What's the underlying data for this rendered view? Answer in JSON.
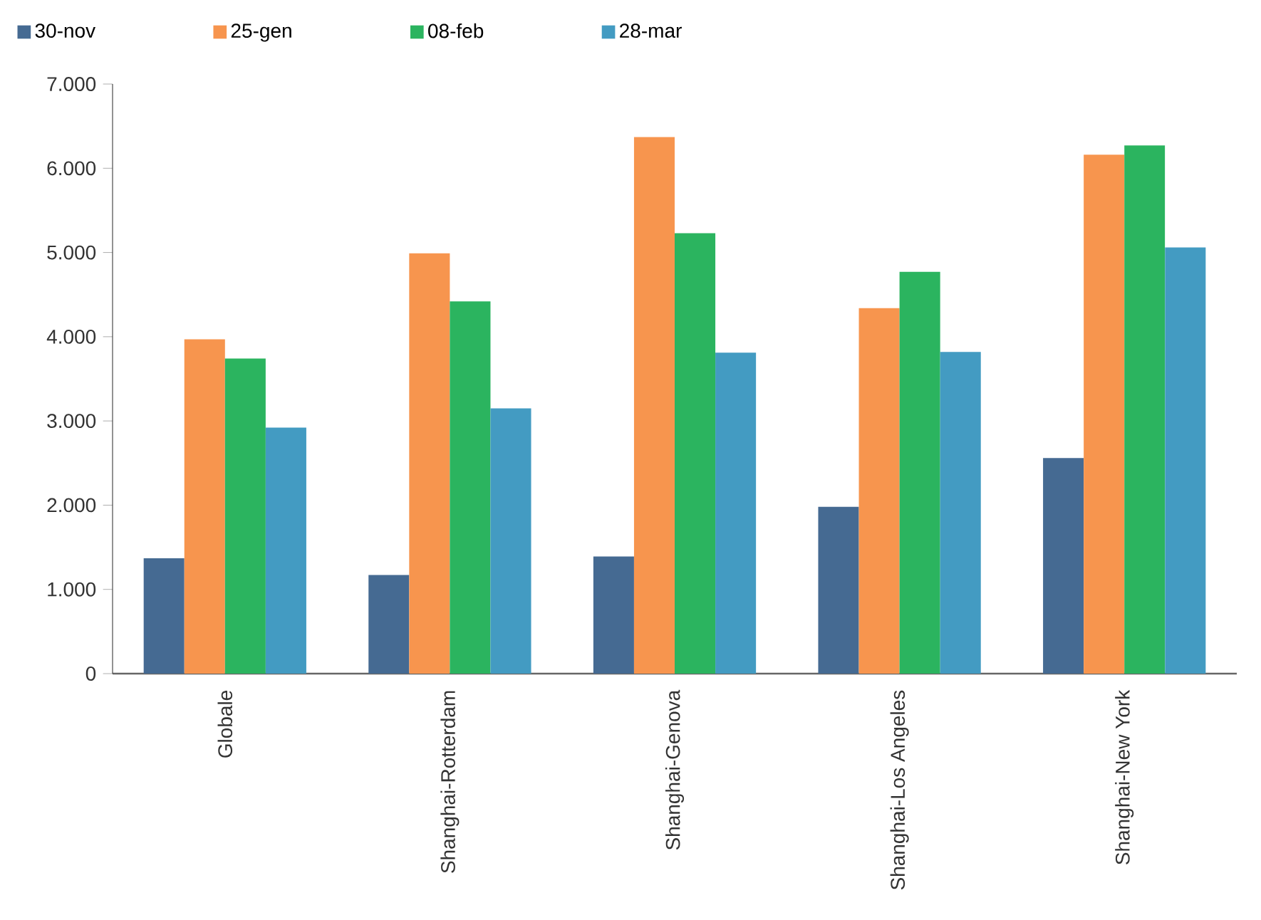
{
  "chart_data": {
    "type": "bar",
    "categories": [
      "Globale",
      "Shanghai-Rotterdam",
      "Shanghai-Genova",
      "Shanghai-Los Angeles",
      "Shanghai-New York"
    ],
    "series": [
      {
        "name": "30-nov",
        "color": "#456a92",
        "values": [
          1370,
          1170,
          1390,
          1980,
          2560
        ]
      },
      {
        "name": "25-gen",
        "color": "#f7954e",
        "values": [
          3970,
          4990,
          6370,
          4340,
          6160
        ]
      },
      {
        "name": "08-feb",
        "color": "#2bb45f",
        "values": [
          3740,
          4420,
          5230,
          4770,
          6270
        ]
      },
      {
        "name": "28-mar",
        "color": "#439bc2",
        "values": [
          2920,
          3150,
          3810,
          3820,
          5060
        ]
      }
    ],
    "ylim": [
      0,
      7000
    ],
    "yticks": [
      {
        "value": 0,
        "label": "0"
      },
      {
        "value": 1000,
        "label": "1.000"
      },
      {
        "value": 2000,
        "label": "2.000"
      },
      {
        "value": 3000,
        "label": "3.000"
      },
      {
        "value": 4000,
        "label": "4.000"
      },
      {
        "value": 5000,
        "label": "5.000"
      },
      {
        "value": 6000,
        "label": "6.000"
      },
      {
        "value": 7000,
        "label": "7.000"
      }
    ],
    "grid": false,
    "legend": "top left"
  }
}
